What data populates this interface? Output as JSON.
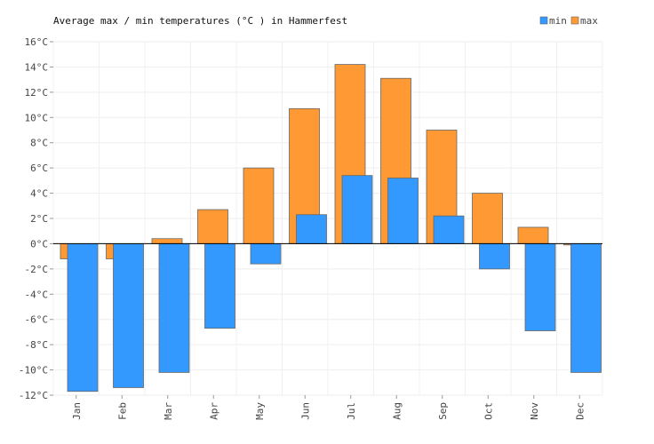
{
  "chart_data": {
    "type": "bar",
    "title": "Average max / min temperatures (°C ) in Hammerfest",
    "xlabel": "",
    "ylabel": "",
    "ylim": [
      -12,
      16
    ],
    "ytick_step": 2,
    "ytick_suffix": "°C",
    "grid": true,
    "legend_position": "top-right",
    "categories": [
      "Jan",
      "Feb",
      "Mar",
      "Apr",
      "May",
      "Jun",
      "Jul",
      "Aug",
      "Sep",
      "Oct",
      "Nov",
      "Dec"
    ],
    "series": [
      {
        "name": "min",
        "color": "#3399ff",
        "values": [
          -11.7,
          -11.4,
          -10.2,
          -6.7,
          -1.6,
          2.3,
          5.4,
          5.2,
          2.2,
          -2.0,
          -6.9,
          -10.2
        ]
      },
      {
        "name": "max",
        "color": "#ff9933",
        "values": [
          -1.2,
          -1.2,
          0.4,
          2.7,
          6.0,
          10.7,
          14.2,
          13.1,
          9.0,
          4.0,
          1.3,
          -0.1
        ]
      }
    ]
  }
}
